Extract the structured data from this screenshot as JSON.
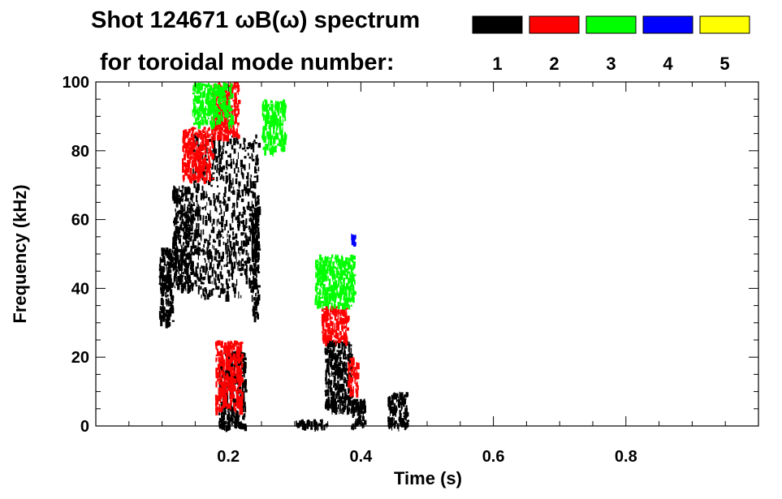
{
  "chart_data": {
    "type": "heatmap",
    "title_line1": "Shot 124671 ωB(ω) spectrum",
    "title_line2": "for toroidal mode number:",
    "xlabel": "Time (s)",
    "ylabel": "Frequency (kHz)",
    "xlim": [
      0.0,
      1.0
    ],
    "ylim": [
      0,
      100
    ],
    "x_ticks": [
      0.2,
      0.4,
      0.6,
      0.8
    ],
    "x_tick_labels": [
      "0.2",
      "0.4",
      "0.6",
      "0.8"
    ],
    "y_ticks": [
      0,
      20,
      40,
      60,
      80,
      100
    ],
    "y_tick_labels": [
      "0",
      "20",
      "40",
      "60",
      "80",
      "100"
    ],
    "legend": [
      {
        "name": "1",
        "color": "#000000"
      },
      {
        "name": "2",
        "color": "#ff0000"
      },
      {
        "name": "3",
        "color": "#00ff00"
      },
      {
        "name": "4",
        "color": "#0000ff"
      },
      {
        "name": "5",
        "color": "#ffff00"
      }
    ],
    "legend_placement": "top-right",
    "regions": [
      {
        "mode": 1,
        "t": [
          0.095,
          0.115
        ],
        "f": [
          30,
          52
        ]
      },
      {
        "mode": 1,
        "t": [
          0.115,
          0.145
        ],
        "f": [
          40,
          70
        ]
      },
      {
        "mode": 1,
        "t": [
          0.145,
          0.245
        ],
        "f": [
          38,
          85
        ]
      },
      {
        "mode": 1,
        "t": [
          0.235,
          0.245
        ],
        "f": [
          32,
          68
        ]
      },
      {
        "mode": 1,
        "t": [
          0.185,
          0.225
        ],
        "f": [
          0,
          22
        ]
      },
      {
        "mode": 1,
        "t": [
          0.345,
          0.385
        ],
        "f": [
          5,
          25
        ]
      },
      {
        "mode": 1,
        "t": [
          0.385,
          0.405
        ],
        "f": [
          0,
          8
        ]
      },
      {
        "mode": 1,
        "t": [
          0.3,
          0.35
        ],
        "f": [
          0,
          2
        ]
      },
      {
        "mode": 1,
        "t": [
          0.44,
          0.47
        ],
        "f": [
          0,
          10
        ]
      },
      {
        "mode": 2,
        "t": [
          0.13,
          0.175
        ],
        "f": [
          72,
          87
        ]
      },
      {
        "mode": 2,
        "t": [
          0.175,
          0.215
        ],
        "f": [
          84,
          100
        ]
      },
      {
        "mode": 2,
        "t": [
          0.18,
          0.22
        ],
        "f": [
          5,
          25
        ]
      },
      {
        "mode": 2,
        "t": [
          0.34,
          0.38
        ],
        "f": [
          25,
          35
        ]
      },
      {
        "mode": 2,
        "t": [
          0.38,
          0.395
        ],
        "f": [
          10,
          20
        ]
      },
      {
        "mode": 3,
        "t": [
          0.145,
          0.205
        ],
        "f": [
          88,
          100
        ]
      },
      {
        "mode": 3,
        "t": [
          0.25,
          0.285
        ],
        "f": [
          80,
          95
        ]
      },
      {
        "mode": 3,
        "t": [
          0.33,
          0.39
        ],
        "f": [
          35,
          50
        ]
      },
      {
        "mode": 4,
        "t": [
          0.385,
          0.39
        ],
        "f": [
          53,
          56
        ]
      }
    ]
  }
}
